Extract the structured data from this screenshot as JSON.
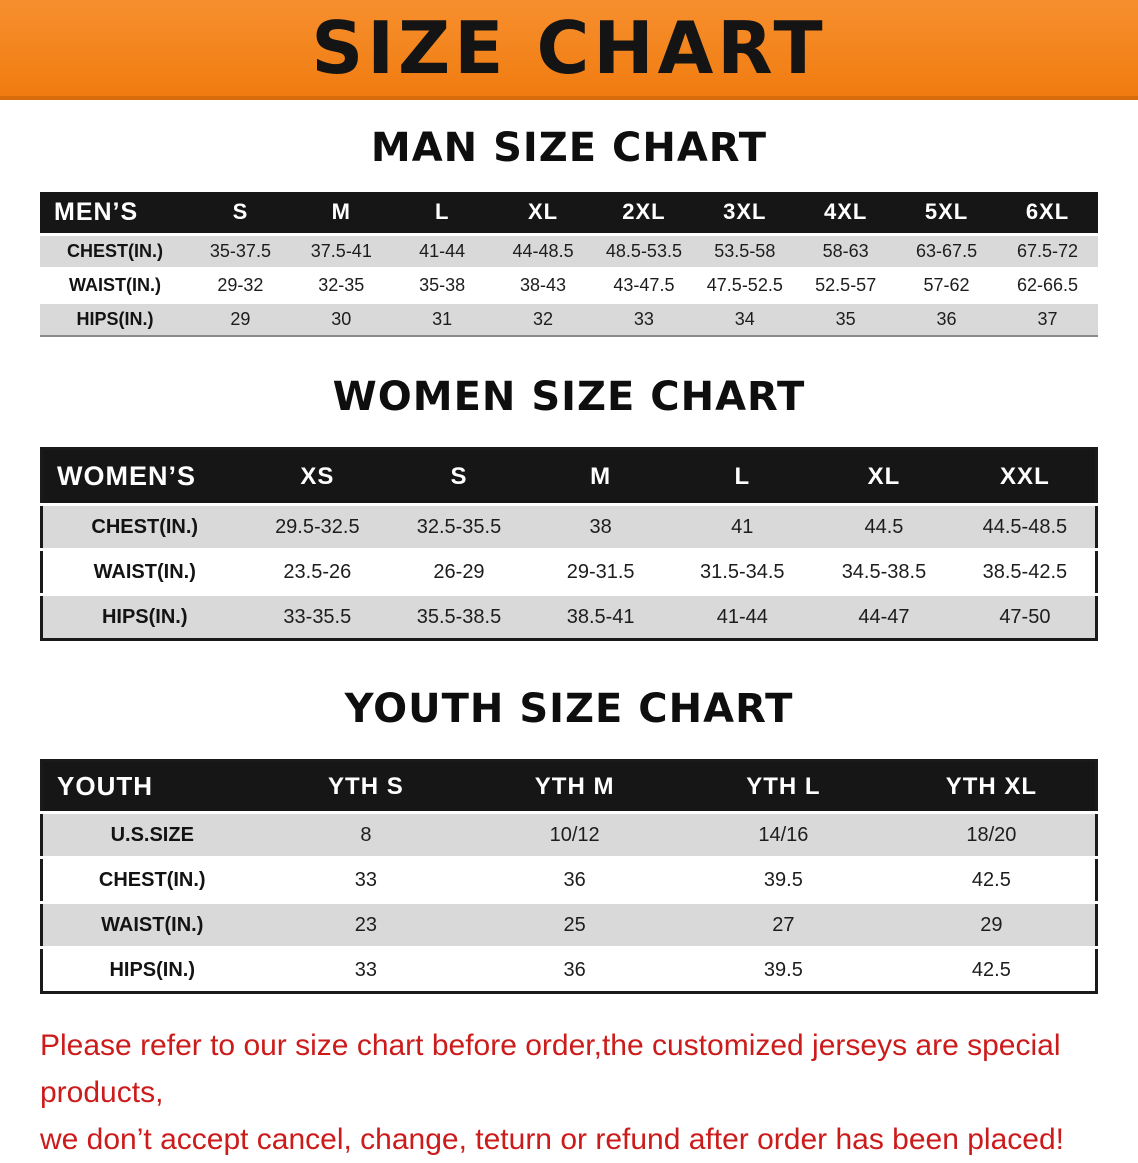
{
  "banner": {
    "title": "SIZE CHART"
  },
  "sections": [
    {
      "heading": "MAN SIZE CHART",
      "table": {
        "header": [
          "MEN’S",
          "S",
          "M",
          "L",
          "XL",
          "2XL",
          "3XL",
          "4XL",
          "5XL",
          "6XL"
        ],
        "rows": [
          {
            "label": "CHEST(IN.)",
            "values": [
              "35-37.5",
              "37.5-41",
              "41-44",
              "44-48.5",
              "48.5-53.5",
              "53.5-58",
              "58-63",
              "63-67.5",
              "67.5-72"
            ]
          },
          {
            "label": "WAIST(IN.)",
            "values": [
              "29-32",
              "32-35",
              "35-38",
              "38-43",
              "43-47.5",
              "47.5-52.5",
              "52.5-57",
              "57-62",
              "62-66.5"
            ]
          },
          {
            "label": "HIPS(IN.)",
            "values": [
              "29",
              "30",
              "31",
              "32",
              "33",
              "34",
              "35",
              "36",
              "37"
            ]
          }
        ]
      }
    },
    {
      "heading": "WOMEN SIZE CHART",
      "table": {
        "header": [
          "WOMEN’S",
          "XS",
          "S",
          "M",
          "L",
          "XL",
          "XXL"
        ],
        "rows": [
          {
            "label": "CHEST(IN.)",
            "values": [
              "29.5-32.5",
              "32.5-35.5",
              "38",
              "41",
              "44.5",
              "44.5-48.5"
            ]
          },
          {
            "label": "WAIST(IN.)",
            "values": [
              "23.5-26",
              "26-29",
              "29-31.5",
              "31.5-34.5",
              "34.5-38.5",
              "38.5-42.5"
            ]
          },
          {
            "label": "HIPS(IN.)",
            "values": [
              "33-35.5",
              "35.5-38.5",
              "38.5-41",
              "41-44",
              "44-47",
              "47-50"
            ]
          }
        ]
      }
    },
    {
      "heading": "YOUTH SIZE CHART",
      "table": {
        "header": [
          "YOUTH",
          "YTH S",
          "YTH M",
          "YTH L",
          "YTH XL"
        ],
        "rows": [
          {
            "label": "U.S.SIZE",
            "values": [
              "8",
              "10/12",
              "14/16",
              "18/20"
            ]
          },
          {
            "label": "CHEST(IN.)",
            "values": [
              "33",
              "36",
              "39.5",
              "42.5"
            ]
          },
          {
            "label": "WAIST(IN.)",
            "values": [
              "23",
              "25",
              "27",
              "29"
            ]
          },
          {
            "label": "HIPS(IN.)",
            "values": [
              "33",
              "36",
              "39.5",
              "42.5"
            ]
          }
        ]
      }
    }
  ],
  "footer": {
    "line1": "Please refer to our size chart before order,the customized jerseys are special products,",
    "line2": "we don’t accept cancel, change, teturn or refund after order has been placed!"
  },
  "colors": {
    "banner_orange": "#F6821E",
    "header_black": "#161616",
    "row_gray": "#D9D9D9",
    "notice_red": "#CC1B1B"
  }
}
